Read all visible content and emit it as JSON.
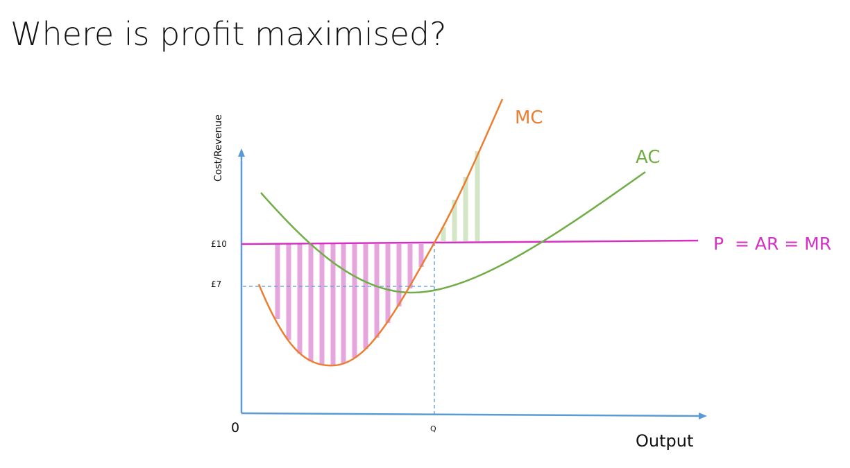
{
  "title": "Where is profit maximised?",
  "axes": {
    "y_label": "Cost/Revenue",
    "x_label": "Output",
    "origin": "0",
    "y_ticks": [
      "£10",
      "£7"
    ],
    "x_ticks": [
      "Q"
    ]
  },
  "curves": {
    "mc": "MC",
    "ac": "AC",
    "price": "P  = AR = MR"
  }
}
